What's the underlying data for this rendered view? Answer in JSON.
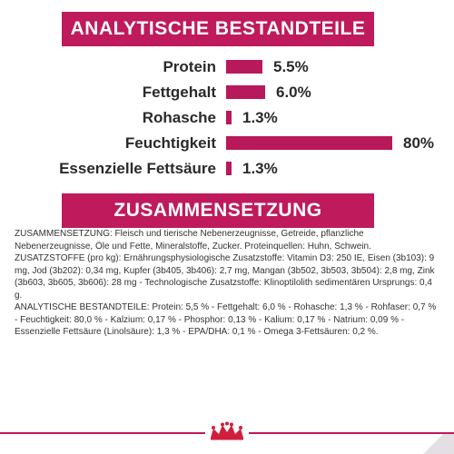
{
  "analysis": {
    "title": "ANALYTISCHE BESTANDTEILE",
    "rows": [
      {
        "label": "Protein",
        "value": "5.5%",
        "percent": 5.5
      },
      {
        "label": "Fettgehalt",
        "value": "6.0%",
        "percent": 6.0
      },
      {
        "label": "Rohasche",
        "value": "1.3%",
        "percent": 1.3
      },
      {
        "label": "Feuchtigkeit",
        "value": "80%",
        "percent": 80
      },
      {
        "label": "Essenzielle Fettsäure",
        "value": "1.3%",
        "percent": 1.3
      }
    ]
  },
  "composition": {
    "title": "ZUSAMMENSETZUNG",
    "paragraphs": [
      "ZUSAMMENSETZUNG: Fleisch und tierische Nebenerzeugnisse, Getreide, pflanzliche Nebenerzeugnisse, Öle und Fette, Mineralstoffe, Zucker. Proteinquellen: Huhn, Schwein.",
      "ZUSATZSTOFFE (pro kg): Ernährungsphysiologische Zusatzstoffe: Vitamin D3: 250 IE, Eisen (3b103): 9 mg, Jod (3b202): 0,34 mg, Kupfer (3b405, 3b406): 2,7 mg, Mangan (3b502, 3b503, 3b504): 2,8 mg, Zink (3b603, 3b605, 3b606): 28 mg - Technologische Zusatzstoffe: Klinoptilolith sedimentären Ursprungs: 0,4 g.",
      "ANALYTISCHE BESTANDTEILE: Protein: 5,5 % - Fettgehalt: 6,0 % - Rohasche: 1,3 % - Rohfaser: 0,7 % - Feuchtigkeit: 80,0 % - Kalzium: 0,17 % - Phosphor: 0,13 % - Kalium: 0,17 % - Natrium: 0,09 % - Essenzielle Fettsäure (Linolsäure): 1,3 % - EPA/DHA: 0,1 % - Omega 3-Fettsäuren: 0,2 %."
    ]
  },
  "colors": {
    "accent": "#bf1a5c"
  },
  "footer": {
    "logo_icon": "royal-canin-crown-icon"
  }
}
